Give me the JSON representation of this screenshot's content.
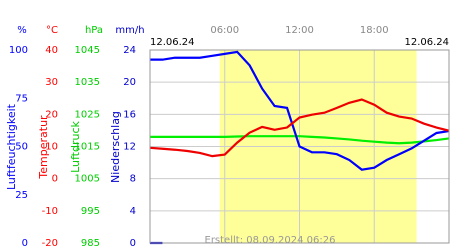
{
  "chart_data": {
    "type": "line",
    "annotations": [
      "12.06.24",
      "12.06.24",
      "Erstellt: 08.09.2024 06:26"
    ],
    "x": [
      0,
      1,
      2,
      3,
      4,
      5,
      6,
      7,
      8,
      9,
      10,
      11,
      12,
      13,
      14,
      15,
      16,
      17,
      18,
      19,
      20,
      21,
      22,
      23,
      24
    ],
    "xlim": [
      0,
      24
    ],
    "xticks": [
      {
        "value": 6,
        "label": "06:00"
      },
      {
        "value": 12,
        "label": "12:00"
      },
      {
        "value": 18,
        "label": "18:00"
      }
    ],
    "shade": [
      5.6,
      21.4
    ],
    "grid": true,
    "y_axes": [
      {
        "unit": "%",
        "title": "Luftfeuchtigkeit",
        "color": "#0000ff",
        "ylim": [
          0,
          100
        ],
        "yticks": [
          0,
          25,
          50,
          75,
          100
        ]
      },
      {
        "unit": "°C",
        "title": "Temperatur",
        "color": "#ff0000",
        "ylim": [
          -20,
          40
        ],
        "yticks": [
          -20,
          -10,
          0,
          10,
          20,
          30,
          40
        ]
      },
      {
        "unit": "hPa",
        "title": "Luftdruck",
        "color": "#00cc00",
        "ylim": [
          985,
          1045
        ],
        "yticks": [
          985,
          995,
          1005,
          1015,
          1025,
          1035,
          1045
        ]
      },
      {
        "unit": "mm/h",
        "title": "Niederschlag",
        "color": "#0000cc",
        "ylim": [
          0,
          24
        ],
        "yticks": [
          0,
          4,
          8,
          12,
          16,
          20,
          24
        ]
      }
    ],
    "series": [
      {
        "axis": 2,
        "color": "#00ee00",
        "values": [
          1018,
          1018,
          1018,
          1018,
          1018,
          1018,
          1018,
          1018.1,
          1018.2,
          1018.2,
          1018.2,
          1018.2,
          1018.2,
          1018,
          1017.8,
          1017.5,
          1017.2,
          1016.8,
          1016.5,
          1016.2,
          1016,
          1016.2,
          1016.6,
          1017,
          1017.5
        ]
      },
      {
        "axis": 0,
        "color": "#0000ff",
        "values": [
          95,
          95,
          96,
          96,
          96,
          97,
          98,
          99,
          92,
          80,
          71,
          70,
          50,
          47,
          47,
          46,
          43,
          38,
          39,
          43,
          46,
          49,
          53,
          57,
          58
        ]
      },
      {
        "axis": 1,
        "color": "#ee0000",
        "values": [
          9.6,
          9.3,
          9,
          8.6,
          8,
          7,
          7.5,
          11.2,
          14.3,
          16.1,
          15.2,
          15.9,
          19,
          19.9,
          20.5,
          22,
          23.6,
          24.6,
          23,
          20.5,
          19.3,
          18.7,
          17.1,
          15.9,
          14.9
        ]
      },
      {
        "axis": 3,
        "color": "#0000cc",
        "values": [
          0,
          0,
          null,
          null,
          null,
          null,
          null,
          null,
          null,
          null,
          null,
          null,
          null,
          null,
          null,
          null,
          null,
          null,
          null,
          null,
          null,
          null,
          null,
          null,
          null
        ]
      }
    ]
  }
}
